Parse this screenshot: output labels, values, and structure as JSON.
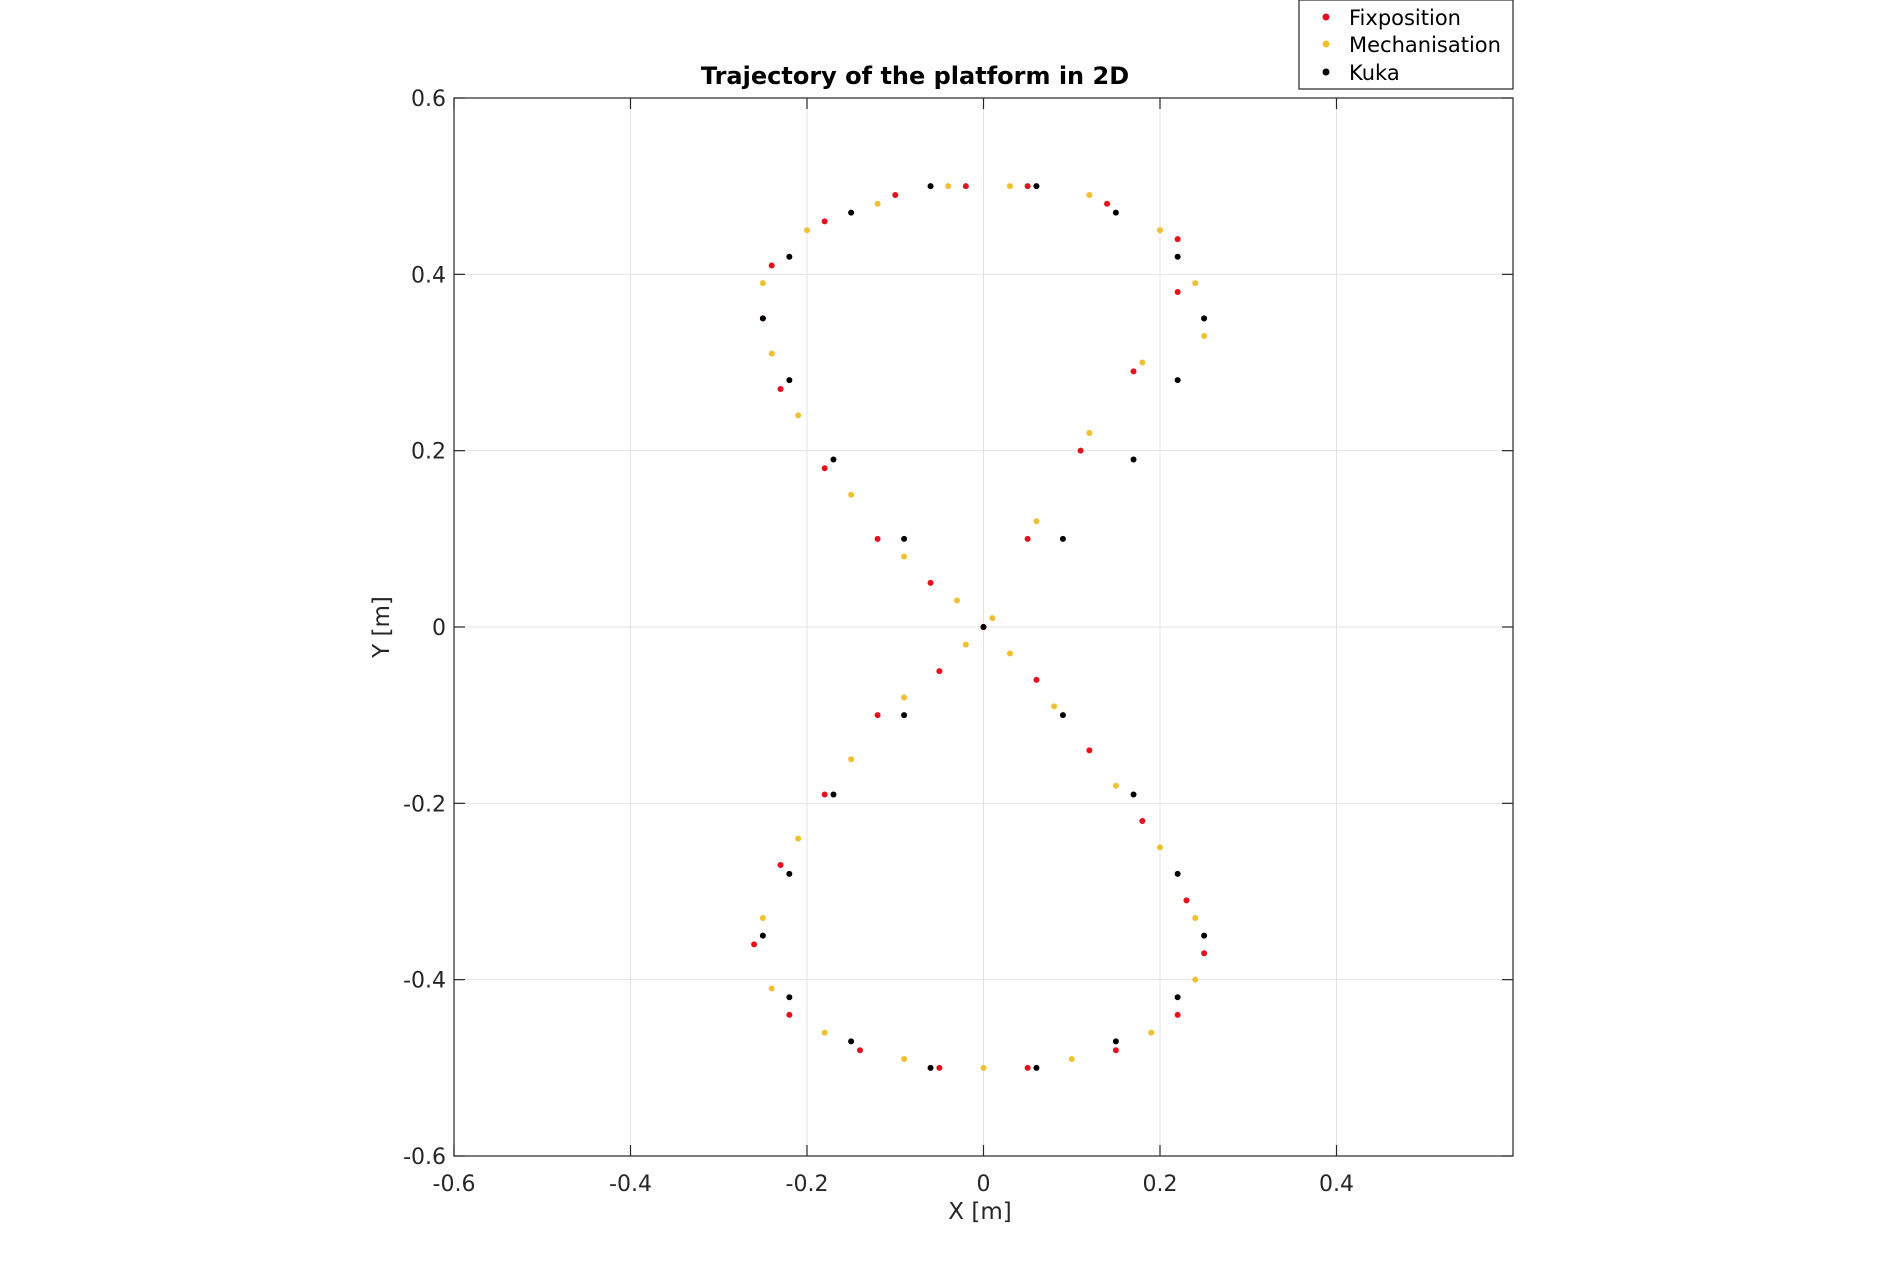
{
  "chart_data": {
    "type": "scatter",
    "title": "Trajectory of the platform in 2D",
    "xlabel": "X [m]",
    "ylabel": "Y [m]",
    "xlim": [
      -0.6,
      0.6
    ],
    "ylim": [
      -0.6,
      0.6
    ],
    "xticks": [
      "-0.6",
      "-0.4",
      "-0.2",
      "0",
      "0.2",
      "0.4"
    ],
    "yticks": [
      "0.6",
      "0.4",
      "0.2",
      "0",
      "-0.2",
      "-0.4",
      "-0.6"
    ],
    "grid": true,
    "legend_position": "top-right, outside axes",
    "trajectory_shape": "figure-eight (lemniscate), x ≈ 0.25·sin(2t), y ≈ 0.5·sin(t)",
    "series": [
      {
        "name": "Fixposition",
        "color": "#e8101c",
        "points": [
          [
            0.0,
            0.0
          ],
          [
            0.05,
            0.1
          ],
          [
            0.11,
            0.2
          ],
          [
            0.17,
            0.29
          ],
          [
            0.22,
            0.38
          ],
          [
            0.25,
            0.35
          ],
          [
            0.22,
            0.44
          ],
          [
            0.14,
            0.48
          ],
          [
            0.05,
            0.5
          ],
          [
            -0.02,
            0.5
          ],
          [
            -0.1,
            0.49
          ],
          [
            -0.18,
            0.46
          ],
          [
            -0.24,
            0.41
          ],
          [
            -0.25,
            0.35
          ],
          [
            -0.23,
            0.27
          ],
          [
            -0.18,
            0.18
          ],
          [
            -0.12,
            0.1
          ],
          [
            -0.06,
            0.05
          ],
          [
            0.0,
            0.0
          ],
          [
            0.06,
            -0.06
          ],
          [
            0.12,
            -0.14
          ],
          [
            0.18,
            -0.22
          ],
          [
            0.23,
            -0.31
          ],
          [
            0.25,
            -0.37
          ],
          [
            0.22,
            -0.44
          ],
          [
            0.15,
            -0.48
          ],
          [
            0.05,
            -0.5
          ],
          [
            -0.05,
            -0.5
          ],
          [
            -0.14,
            -0.48
          ],
          [
            -0.22,
            -0.44
          ],
          [
            -0.26,
            -0.36
          ],
          [
            -0.23,
            -0.27
          ],
          [
            -0.18,
            -0.19
          ],
          [
            -0.12,
            -0.1
          ],
          [
            -0.05,
            -0.05
          ]
        ]
      },
      {
        "name": "Mechanisation",
        "color": "#f0c030",
        "points": [
          [
            0.01,
            0.01
          ],
          [
            0.06,
            0.12
          ],
          [
            0.12,
            0.22
          ],
          [
            0.18,
            0.3
          ],
          [
            0.24,
            0.39
          ],
          [
            0.25,
            0.33
          ],
          [
            0.2,
            0.45
          ],
          [
            0.12,
            0.49
          ],
          [
            0.03,
            0.5
          ],
          [
            -0.04,
            0.5
          ],
          [
            -0.12,
            0.48
          ],
          [
            -0.2,
            0.45
          ],
          [
            -0.25,
            0.39
          ],
          [
            -0.24,
            0.31
          ],
          [
            -0.21,
            0.24
          ],
          [
            -0.15,
            0.15
          ],
          [
            -0.09,
            0.08
          ],
          [
            -0.03,
            0.03
          ],
          [
            0.03,
            -0.03
          ],
          [
            0.08,
            -0.09
          ],
          [
            0.15,
            -0.18
          ],
          [
            0.2,
            -0.25
          ],
          [
            0.24,
            -0.33
          ],
          [
            0.24,
            -0.4
          ],
          [
            0.19,
            -0.46
          ],
          [
            0.1,
            -0.49
          ],
          [
            0.0,
            -0.5
          ],
          [
            -0.09,
            -0.49
          ],
          [
            -0.18,
            -0.46
          ],
          [
            -0.24,
            -0.41
          ],
          [
            -0.25,
            -0.33
          ],
          [
            -0.21,
            -0.24
          ],
          [
            -0.15,
            -0.15
          ],
          [
            -0.09,
            -0.08
          ],
          [
            -0.02,
            -0.02
          ]
        ]
      },
      {
        "name": "Kuka",
        "color": "#000000",
        "points": [
          [
            0.0,
            0.0
          ],
          [
            0.09,
            0.1
          ],
          [
            0.17,
            0.19
          ],
          [
            0.22,
            0.28
          ],
          [
            0.25,
            0.35
          ],
          [
            0.22,
            0.42
          ],
          [
            0.15,
            0.47
          ],
          [
            0.06,
            0.5
          ],
          [
            -0.06,
            0.5
          ],
          [
            -0.15,
            0.47
          ],
          [
            -0.22,
            0.42
          ],
          [
            -0.25,
            0.35
          ],
          [
            -0.22,
            0.28
          ],
          [
            -0.17,
            0.19
          ],
          [
            -0.09,
            0.1
          ],
          [
            0.09,
            -0.1
          ],
          [
            0.17,
            -0.19
          ],
          [
            0.22,
            -0.28
          ],
          [
            0.25,
            -0.35
          ],
          [
            0.22,
            -0.42
          ],
          [
            0.15,
            -0.47
          ],
          [
            0.06,
            -0.5
          ],
          [
            -0.06,
            -0.5
          ],
          [
            -0.15,
            -0.47
          ],
          [
            -0.22,
            -0.42
          ],
          [
            -0.25,
            -0.35
          ],
          [
            -0.22,
            -0.28
          ],
          [
            -0.17,
            -0.19
          ],
          [
            -0.09,
            -0.1
          ]
        ]
      }
    ]
  }
}
